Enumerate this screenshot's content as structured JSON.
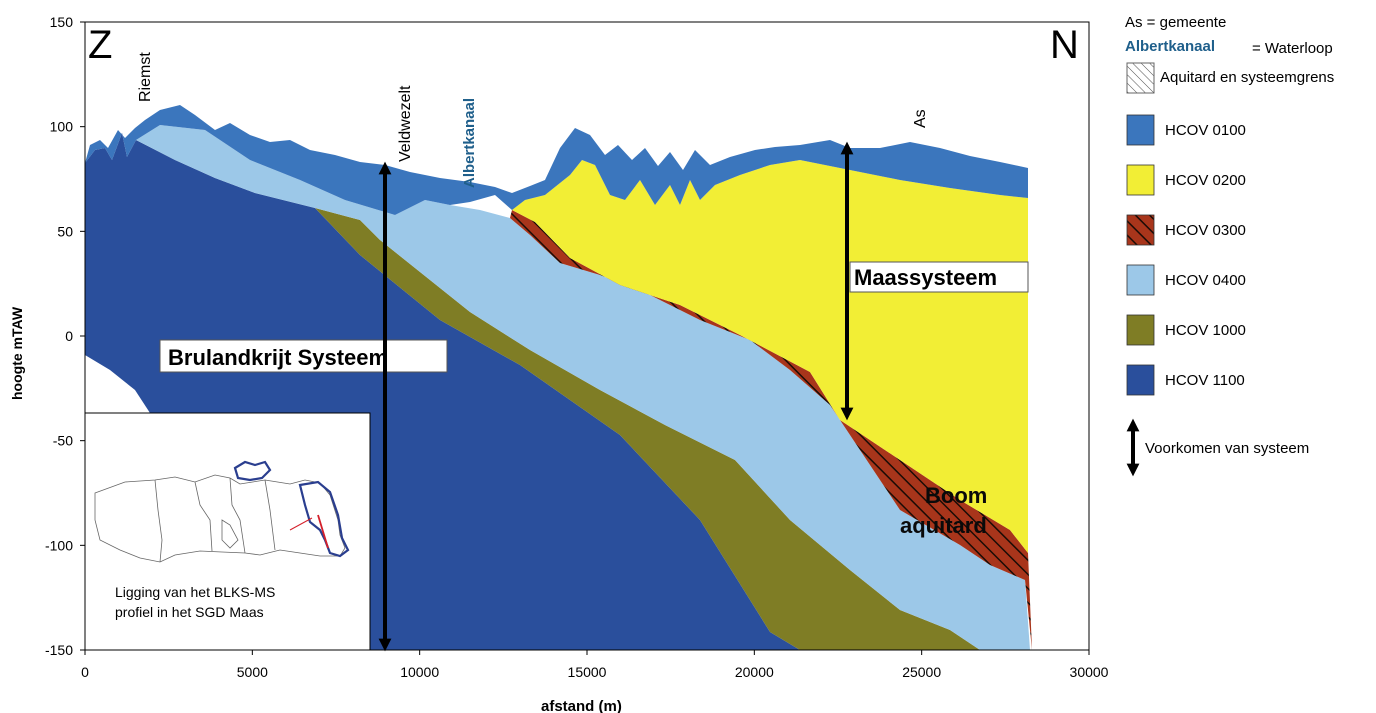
{
  "chart_data": {
    "type": "cross-section",
    "xlabel": "afstand (m)",
    "ylabel": "hoogte mTAW",
    "xlim": [
      0,
      30000
    ],
    "ylim": [
      -150,
      150
    ],
    "x_ticks": [
      "0",
      "5000",
      "10000",
      "15000",
      "20000",
      "25000",
      "30000"
    ],
    "y_ticks": [
      "150",
      "100",
      "50",
      "0",
      "-50",
      "-100",
      "-150"
    ],
    "orientation": {
      "south": "Z",
      "north": "N"
    },
    "place_labels": [
      {
        "text": "Riemst",
        "color": "#000000"
      },
      {
        "text": "Veldwezelt",
        "color": "#000000"
      },
      {
        "text": "Albertkanaal",
        "color": "#1f5f8b"
      },
      {
        "text": "As",
        "color": "#000000"
      }
    ],
    "systems": [
      {
        "name": "Brulandkrijt Systeem",
        "from": 81,
        "to": -150
      },
      {
        "name": "Maassysteem",
        "from": 91,
        "to": -41
      }
    ],
    "aquitard_label": "Boom aquitard",
    "inset": {
      "caption_line1": "Ligging van het BLKS-MS",
      "caption_line2": "profiel in het SGD Maas"
    },
    "legend": {
      "gemeente_key": "As = gemeente",
      "waterloop_name": "Albertkanaal",
      "waterloop_key": "= Waterloop",
      "aquitard_key": "Aquitard en systeemgrens",
      "arrow_key": "Voorkomen van systeem",
      "placement": "right"
    },
    "units": [
      {
        "name": "HCOV 0100",
        "color": "#3b76bd"
      },
      {
        "name": "HCOV 0200",
        "color": "#f2ee35"
      },
      {
        "name": "HCOV 0300",
        "color": "#a8351b",
        "hatched": true
      },
      {
        "name": "HCOV 0400",
        "color": "#9cc8e8"
      },
      {
        "name": "HCOV 1000",
        "color": "#7f7d25"
      },
      {
        "name": "HCOV 1100",
        "color": "#2a4f9c"
      }
    ]
  }
}
